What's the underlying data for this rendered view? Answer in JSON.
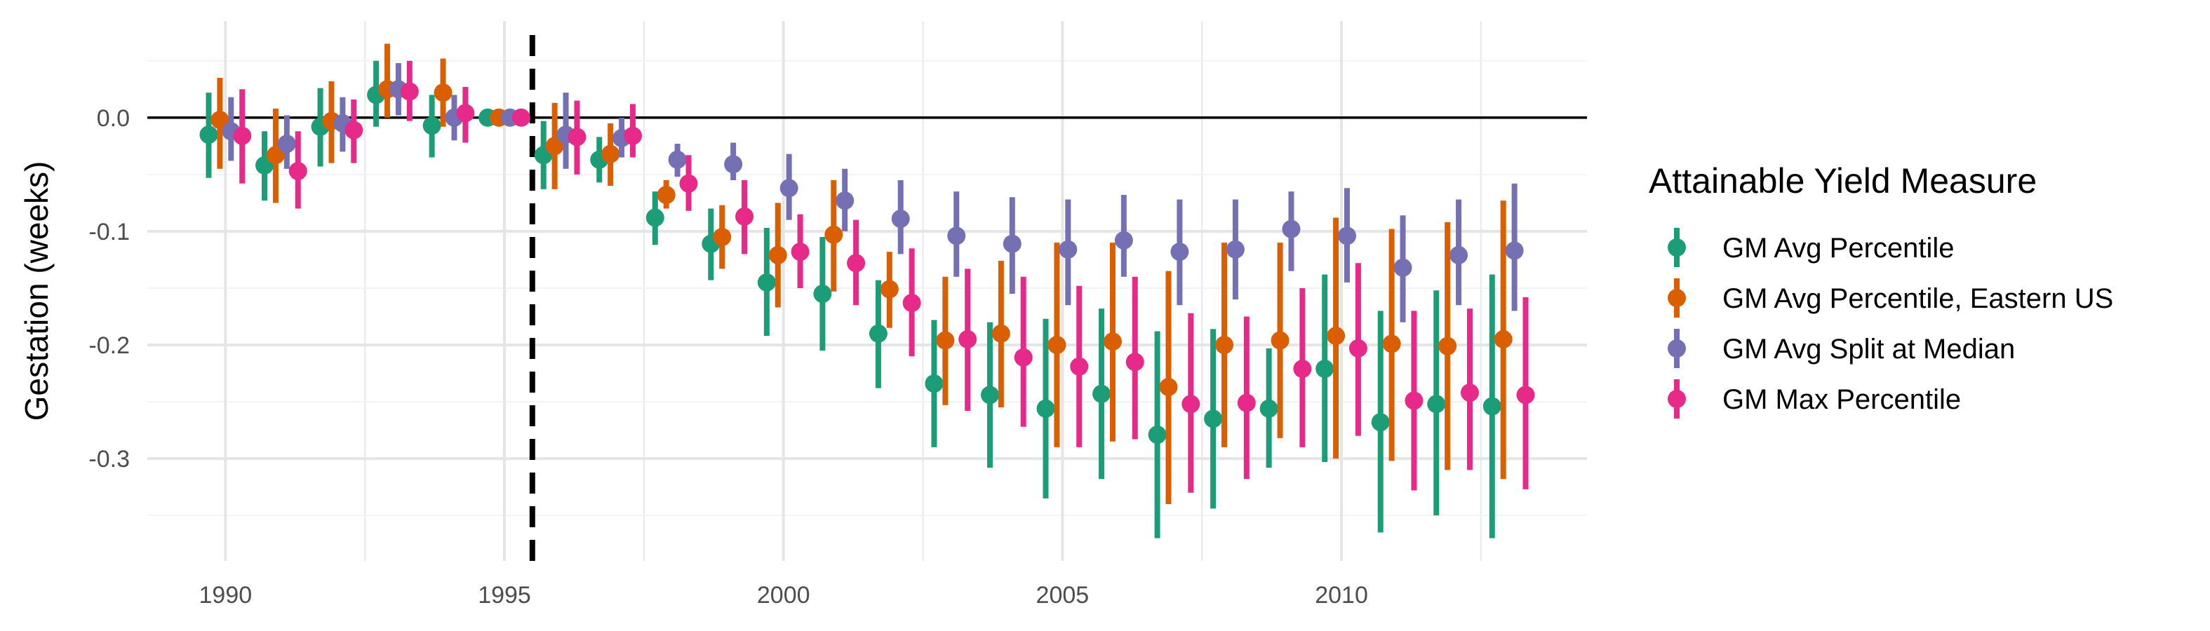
{
  "chart_data": {
    "type": "scatter",
    "subtype": "point-range (estimates with confidence intervals)",
    "title": "",
    "xlabel": "",
    "ylabel": "Gestation (weeks)",
    "xlim": [
      1988.6,
      2014.4
    ],
    "ylim": [
      -0.39,
      0.085
    ],
    "x_ticks": [
      1990,
      1995,
      2000,
      2005,
      2010
    ],
    "x_tick_labels": [
      "1990",
      "1995",
      "2000",
      "2005",
      "2010"
    ],
    "y_ticks": [
      0.0,
      -0.1,
      -0.2,
      -0.3
    ],
    "y_tick_labels": [
      "0.0",
      "-0.1",
      "-0.2",
      "-0.3"
    ],
    "reference_line": {
      "y": 0,
      "style": "solid"
    },
    "vertical_line": {
      "x": 1995.5,
      "style": "dashed"
    },
    "grid": true,
    "legend": {
      "title": "Attainable Yield Measure",
      "position": "right"
    },
    "x": [
      1990,
      1991,
      1992,
      1993,
      1994,
      1995,
      1996,
      1997,
      1998,
      1999,
      2000,
      2001,
      2002,
      2003,
      2004,
      2005,
      2006,
      2007,
      2008,
      2009,
      2010,
      2011,
      2012,
      2013
    ],
    "series": [
      {
        "name": "GM Avg Percentile",
        "color": "#1B9E77",
        "offset": -0.3,
        "estimate": [
          -0.015,
          -0.042,
          -0.008,
          0.02,
          -0.007,
          0.0,
          -0.033,
          -0.037,
          -0.088,
          -0.111,
          -0.145,
          -0.155,
          -0.19,
          -0.234,
          -0.244,
          -0.256,
          -0.243,
          -0.279,
          -0.265,
          -0.256,
          -0.221,
          -0.268,
          -0.252,
          -0.254
        ],
        "lower": [
          -0.053,
          -0.073,
          -0.043,
          -0.008,
          -0.035,
          0.0,
          -0.063,
          -0.057,
          -0.112,
          -0.143,
          -0.192,
          -0.205,
          -0.238,
          -0.29,
          -0.308,
          -0.335,
          -0.318,
          -0.37,
          -0.344,
          -0.308,
          -0.303,
          -0.365,
          -0.35,
          -0.37
        ],
        "upper": [
          0.022,
          -0.012,
          0.026,
          0.05,
          0.02,
          0.0,
          -0.003,
          -0.017,
          -0.065,
          -0.08,
          -0.097,
          -0.105,
          -0.143,
          -0.178,
          -0.18,
          -0.177,
          -0.168,
          -0.188,
          -0.186,
          -0.203,
          -0.138,
          -0.17,
          -0.152,
          -0.138
        ]
      },
      {
        "name": "GM Avg Percentile, Eastern US",
        "color": "#D95F02",
        "offset": -0.1,
        "estimate": [
          -0.002,
          -0.033,
          -0.003,
          0.025,
          0.022,
          0.0,
          -0.025,
          -0.032,
          -0.068,
          -0.105,
          -0.121,
          -0.103,
          -0.151,
          -0.196,
          -0.19,
          -0.2,
          -0.197,
          -0.237,
          -0.2,
          -0.196,
          -0.192,
          -0.199,
          -0.201,
          -0.195
        ],
        "lower": [
          -0.045,
          -0.075,
          -0.04,
          0.0,
          -0.008,
          0.0,
          -0.063,
          -0.06,
          -0.08,
          -0.133,
          -0.167,
          -0.153,
          -0.185,
          -0.253,
          -0.255,
          -0.29,
          -0.285,
          -0.34,
          -0.29,
          -0.282,
          -0.3,
          -0.302,
          -0.31,
          -0.318
        ],
        "upper": [
          0.035,
          0.008,
          0.032,
          0.065,
          0.052,
          0.0,
          0.013,
          -0.005,
          -0.055,
          -0.077,
          -0.075,
          -0.055,
          -0.118,
          -0.14,
          -0.126,
          -0.11,
          -0.11,
          -0.135,
          -0.11,
          -0.11,
          -0.088,
          -0.098,
          -0.092,
          -0.073
        ]
      },
      {
        "name": "GM Avg Split at Median",
        "color": "#7570B3",
        "offset": 0.1,
        "estimate": [
          -0.012,
          -0.023,
          -0.005,
          0.025,
          0.0,
          0.0,
          -0.015,
          -0.018,
          -0.037,
          -0.041,
          -0.062,
          -0.073,
          -0.089,
          -0.104,
          -0.111,
          -0.116,
          -0.108,
          -0.118,
          -0.116,
          -0.098,
          -0.104,
          -0.132,
          -0.121,
          -0.117
        ],
        "lower": [
          -0.038,
          -0.045,
          -0.03,
          0.002,
          -0.02,
          0.0,
          -0.045,
          -0.035,
          -0.052,
          -0.055,
          -0.09,
          -0.1,
          -0.12,
          -0.14,
          -0.155,
          -0.165,
          -0.14,
          -0.165,
          -0.16,
          -0.135,
          -0.145,
          -0.18,
          -0.165,
          -0.17
        ],
        "upper": [
          0.018,
          0.002,
          0.018,
          0.048,
          0.02,
          0.0,
          0.022,
          0.0,
          -0.023,
          -0.022,
          -0.032,
          -0.045,
          -0.055,
          -0.065,
          -0.07,
          -0.072,
          -0.068,
          -0.072,
          -0.072,
          -0.065,
          -0.062,
          -0.086,
          -0.072,
          -0.058
        ]
      },
      {
        "name": "GM Max Percentile",
        "color": "#E7298A",
        "offset": 0.3,
        "estimate": [
          -0.016,
          -0.047,
          -0.011,
          0.023,
          0.004,
          0.0,
          -0.017,
          -0.016,
          -0.058,
          -0.087,
          -0.118,
          -0.128,
          -0.163,
          -0.195,
          -0.211,
          -0.219,
          -0.215,
          -0.252,
          -0.251,
          -0.221,
          -0.203,
          -0.249,
          -0.242,
          -0.244
        ],
        "lower": [
          -0.058,
          -0.08,
          -0.04,
          -0.003,
          -0.022,
          0.0,
          -0.05,
          -0.035,
          -0.082,
          -0.12,
          -0.15,
          -0.165,
          -0.21,
          -0.258,
          -0.272,
          -0.29,
          -0.283,
          -0.33,
          -0.318,
          -0.29,
          -0.28,
          -0.328,
          -0.31,
          -0.327
        ],
        "upper": [
          0.025,
          -0.012,
          0.016,
          0.05,
          0.027,
          0.0,
          0.015,
          0.012,
          -0.033,
          -0.055,
          -0.085,
          -0.09,
          -0.115,
          -0.133,
          -0.14,
          -0.148,
          -0.14,
          -0.172,
          -0.175,
          -0.15,
          -0.128,
          -0.17,
          -0.168,
          -0.158
        ]
      }
    ]
  }
}
